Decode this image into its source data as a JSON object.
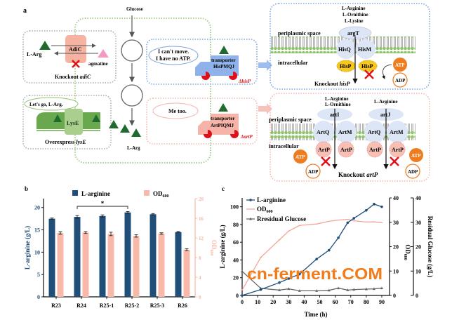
{
  "panel_a": {
    "label": "a",
    "glucose": "Glucose",
    "adic": {
      "protein": "AdiC",
      "substrate": "L-Arg",
      "product": "agmatine",
      "caption_prefix": "Knockout ",
      "caption_gene": "adiC"
    },
    "lyse": {
      "speech": "Let's go, L-Arg.",
      "protein": "LysE",
      "caption_prefix": "Overexpress ",
      "caption_gene": "lysE",
      "product": "L-Arg"
    },
    "hisp_truck": {
      "speech_line1": "I can't move.",
      "speech_line2": "I have no ATP.",
      "cargo_line1": "transporter",
      "cargo_line2": "HisPMQJ",
      "deletion": "ΔhisP"
    },
    "artp_truck": {
      "speech": "Me too.",
      "cargo_line1": "transporter",
      "cargo_line2": "ArtPIQMJ",
      "deletion": "ΔartP"
    },
    "hisp_detail": {
      "substrates": [
        "L-Arginine",
        "L-Ornithine",
        "L-Lysine"
      ],
      "periplasm": "periplasmic space",
      "intracellular": "intracellular",
      "binding": "argT",
      "q": "HisQ",
      "m": "HisM",
      "p": "HisP",
      "atp": "ATP",
      "adp": "ADP",
      "caption_prefix": "Knockout ",
      "caption_gene": "hisP"
    },
    "artp_detail": {
      "substrates_1": [
        "L-Arginine",
        "L-Ornithine"
      ],
      "substrates_2": [
        "L-Arginine"
      ],
      "periplasm": "periplasmic space",
      "intracellular": "intracellular",
      "binding_1": "artI",
      "binding_2": "artJ",
      "q": "ArtQ",
      "m": "ArtM",
      "p": "ArtP",
      "atp": "ATP",
      "adp": "ADP",
      "caption_prefix": "Knockout ",
      "caption_gene": "artP"
    }
  },
  "chart_data": [
    {
      "panel": "b",
      "type": "bar",
      "categories": [
        "R23",
        "R24",
        "R25-1",
        "R25-2",
        "R25-3",
        "R26"
      ],
      "series": [
        {
          "name": "L-arginine",
          "axis": "left",
          "color": "#1f4e79",
          "values": [
            17.5,
            17.9,
            18.1,
            18.9,
            18.5,
            14.5
          ],
          "errors": [
            0.15,
            0.3,
            0.25,
            0.2,
            0.15,
            0.15
          ]
        },
        {
          "name": "OD",
          "name_sub": "600",
          "axis": "right",
          "color": "#f8b9a8",
          "values": [
            13.0,
            13.1,
            12.8,
            12.4,
            12.9,
            9.6
          ],
          "errors": [
            0.25,
            0.2,
            0.35,
            0.25,
            0.15,
            0.2
          ]
        }
      ],
      "ylabel": "L-arginine (g/L)",
      "ylabel_right": "OD",
      "ylabel_right_sub": "600",
      "ylim": [
        0,
        22
      ],
      "yticks": [
        0,
        5,
        10,
        15,
        20
      ],
      "ylim_right": [
        0,
        20
      ],
      "yticks_right": [
        0,
        4,
        8,
        12,
        16,
        20
      ],
      "significance": {
        "from": "R24",
        "to": "R25-2",
        "label": "*"
      },
      "legend": "top"
    },
    {
      "panel": "c",
      "type": "line",
      "x": [
        0,
        12,
        24,
        30,
        37,
        48,
        56,
        62,
        68,
        72,
        80,
        85,
        90
      ],
      "series": [
        {
          "name": "L-arginine",
          "axis": "left",
          "color": "#1f4e79",
          "marker": "circle",
          "values": [
            0,
            6.6,
            14.5,
            19,
            24,
            41,
            51,
            65,
            82,
            87,
            96,
            103,
            100
          ]
        },
        {
          "name": "OD",
          "name_sub": "600",
          "axis": "right",
          "color": "#f4a59a",
          "marker": "none",
          "values": [
            2.2,
            15.6,
            22.8,
            26.4,
            28.7,
            29.3,
            30.4,
            30.9,
            31.2,
            30.6,
            30.1,
            30.2,
            29.8
          ]
        },
        {
          "name": "Rresidual Glucose",
          "axis": "right2",
          "color": "#666666",
          "marker": "triangle",
          "values": [
            9.9,
            2.9,
            2.2,
            2.7,
            1.9,
            1.9,
            2.1,
            3.0,
            2.2,
            2.4,
            2.6,
            2.7,
            3.0
          ]
        }
      ],
      "xlabel": "Time (h)",
      "xlim": [
        0,
        95
      ],
      "xticks": [
        0,
        10,
        20,
        30,
        40,
        50,
        60,
        70,
        80,
        90
      ],
      "ylabel": "L-arginine (g/L)",
      "ylim": [
        0,
        110
      ],
      "yticks": [
        0,
        20,
        40,
        60,
        80,
        100
      ],
      "ylabel_right": "OD",
      "ylabel_right_sub": "600",
      "ylim_right": [
        0,
        40
      ],
      "yticks_right": [
        0,
        10,
        20,
        30,
        40
      ],
      "ylabel_right2": "Residual Glucose (g/L)",
      "ylim_right2": [
        0,
        40
      ],
      "yticks_right2": [
        0,
        10,
        20,
        30,
        40
      ],
      "legend": "top-left"
    }
  ],
  "panel_b_label": "b",
  "panel_c_label": "c",
  "watermark": "cn-ferment.COM"
}
